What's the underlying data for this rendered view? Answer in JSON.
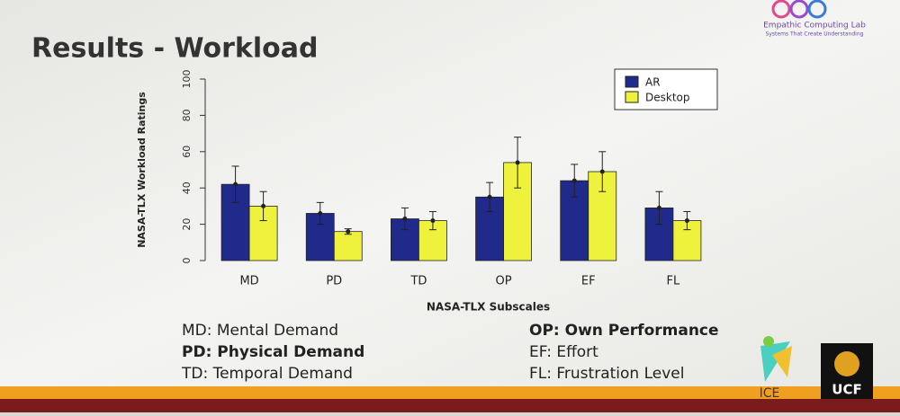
{
  "slide": {
    "title": "Results - Workload",
    "lab_name": "Empathic Computing Lab",
    "lab_tagline": "Systems That Create Understanding",
    "abbreviations_left": [
      {
        "text": "MD: Mental Demand",
        "bold": false
      },
      {
        "text": "PD: Physical Demand",
        "bold": true
      },
      {
        "text": "TD: Temporal Demand",
        "bold": false
      }
    ],
    "abbreviations_right": [
      {
        "text": "OP: Own Performance",
        "bold": true
      },
      {
        "text": "EF: Effort",
        "bold": false
      },
      {
        "text": "FL: Frustration Level",
        "bold": false
      }
    ],
    "logo_left": "ICE",
    "logo_right": "UCF"
  },
  "chart_data": {
    "type": "bar",
    "x_label": "NASA-TLX Subscales",
    "y_label": "NASA-TLX Workload Ratings",
    "categories": [
      "MD",
      "PD",
      "TD",
      "OP",
      "EF",
      "FL"
    ],
    "series": [
      {
        "name": "AR",
        "color": "#1f2a8a",
        "values": [
          42,
          26,
          23,
          35,
          44,
          29
        ],
        "errors": [
          10,
          6,
          6,
          8,
          9,
          9
        ]
      },
      {
        "name": "Desktop",
        "color": "#eef23c",
        "values": [
          30,
          16,
          22,
          54,
          49,
          22
        ],
        "errors": [
          8,
          1.5,
          5,
          14,
          11,
          5
        ]
      }
    ],
    "ylim": [
      0,
      100
    ],
    "yticks": [
      0,
      20,
      40,
      60,
      80,
      100
    ],
    "legend": "top-right"
  }
}
